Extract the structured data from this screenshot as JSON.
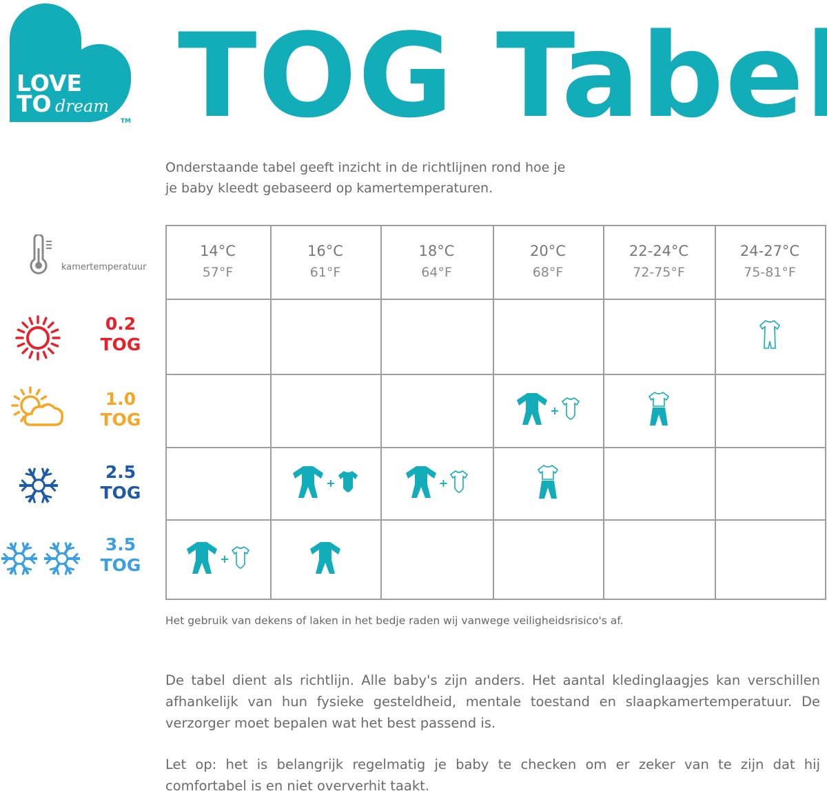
{
  "brand": {
    "logo_text_line1": "LOVE",
    "logo_text_line2": "TO",
    "logo_script": "dream",
    "trademark": "TM",
    "color": "#12adb8"
  },
  "title": "TOG Tabel",
  "intro": [
    "Onderstaande tabel geeft inzicht in de richtlijnen rond hoe je",
    "je baby kleedt gebaseerd op kamertemperaturen."
  ],
  "header": {
    "label": "kamertemperatuur",
    "icon": "thermometer-icon",
    "columns": [
      {
        "c": "14°C",
        "f": "57°F"
      },
      {
        "c": "16°C",
        "f": "61°F"
      },
      {
        "c": "18°C",
        "f": "64°F"
      },
      {
        "c": "20°C",
        "f": "68°F"
      },
      {
        "c": "22-24°C",
        "f": "72-75°F"
      },
      {
        "c": "24-27°C",
        "f": "75-81°F"
      }
    ]
  },
  "rows": [
    {
      "value": "0.2",
      "unit": "TOG",
      "icon": "sun-icon",
      "color": "#e8202a",
      "cells": [
        [],
        [],
        [],
        [],
        [],
        [
          "shortie-outline"
        ]
      ]
    },
    {
      "value": "1.0",
      "unit": "TOG",
      "icon": "sun-cloud-icon",
      "color": "#f5a623",
      "cells": [
        [],
        [],
        [],
        [
          "romper",
          "bodysuit-outline"
        ],
        [
          "tee-pants"
        ],
        []
      ]
    },
    {
      "value": "2.5",
      "unit": "TOG",
      "icon": "snowflake-icon",
      "color": "#1e5aa8",
      "cells": [
        [],
        [
          "romper",
          "bodysuit-filled"
        ],
        [
          "romper",
          "bodysuit-outline"
        ],
        [
          "tee-pants"
        ],
        [],
        []
      ]
    },
    {
      "value": "3.5",
      "unit": "TOG",
      "icon": "double-snowflake-icon",
      "color": "#3aa0e0",
      "cells": [
        [
          "romper",
          "bodysuit-outline"
        ],
        [
          "romper"
        ],
        [],
        [],
        [],
        []
      ]
    }
  ],
  "note": "Het gebruik van dekens of laken in het bedje raden wij vanwege veiligheidsrisico's af.",
  "paragraphs": [
    "De tabel dient als richtlijn. Alle baby's zijn anders. Het aantal kledinglaagjes kan verschillen afhankelijk van hun fysieke gesteldheid, mentale toestand en slaapkamertemperatuur. De verzorger moet bepalen wat het best passend is.",
    "Let op: het is belangrijk regelmatig je baby te checken om er zeker van te zijn dat hij comfortabel is en niet oververhit taakt."
  ],
  "plus": "+"
}
